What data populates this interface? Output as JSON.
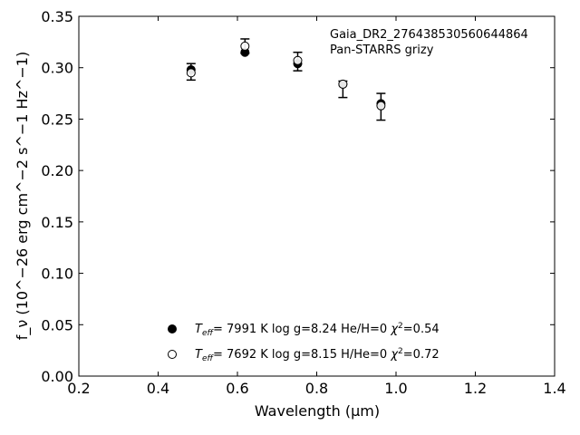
{
  "chart_data": {
    "type": "scatter",
    "xlabel": "Wavelength (μm)",
    "ylabel": "f_ν (10^−26 erg cm^−2 s^−1 Hz^−1)",
    "xlim": [
      0.2,
      1.4
    ],
    "ylim": [
      0.0,
      0.35
    ],
    "x_ticks": [
      "0.2",
      "0.4",
      "0.6",
      "0.8",
      "1.0",
      "1.2",
      "1.4"
    ],
    "y_ticks": [
      "0.00",
      "0.05",
      "0.10",
      "0.15",
      "0.20",
      "0.25",
      "0.30",
      "0.35"
    ],
    "annotation_lines": [
      "Gaia_DR2_276438530560644864",
      "Pan-STARRS grizy"
    ],
    "grid": false,
    "legend_position": "bottom-center",
    "observed": {
      "x": [
        0.483,
        0.619,
        0.752,
        0.866,
        0.962
      ],
      "y": [
        0.296,
        0.321,
        0.306,
        0.279,
        0.262
      ],
      "yerr": [
        0.008,
        0.007,
        0.009,
        0.008,
        0.013
      ]
    },
    "series": [
      {
        "marker": "filled",
        "legend": {
          "teff": "7991 K",
          "logg": "log g=8.24",
          "comp": "He/H=0",
          "chi2": "=0.54"
        },
        "x": [
          0.483,
          0.619,
          0.752,
          0.866,
          0.962
        ],
        "y": [
          0.298,
          0.315,
          0.304,
          0.284,
          0.265
        ]
      },
      {
        "marker": "open",
        "legend": {
          "teff": "7692 K",
          "logg": "log g=8.15",
          "comp": "H/He=0",
          "chi2": "=0.72"
        },
        "x": [
          0.483,
          0.619,
          0.752,
          0.866,
          0.962
        ],
        "y": [
          0.295,
          0.321,
          0.307,
          0.284,
          0.263
        ]
      }
    ]
  }
}
